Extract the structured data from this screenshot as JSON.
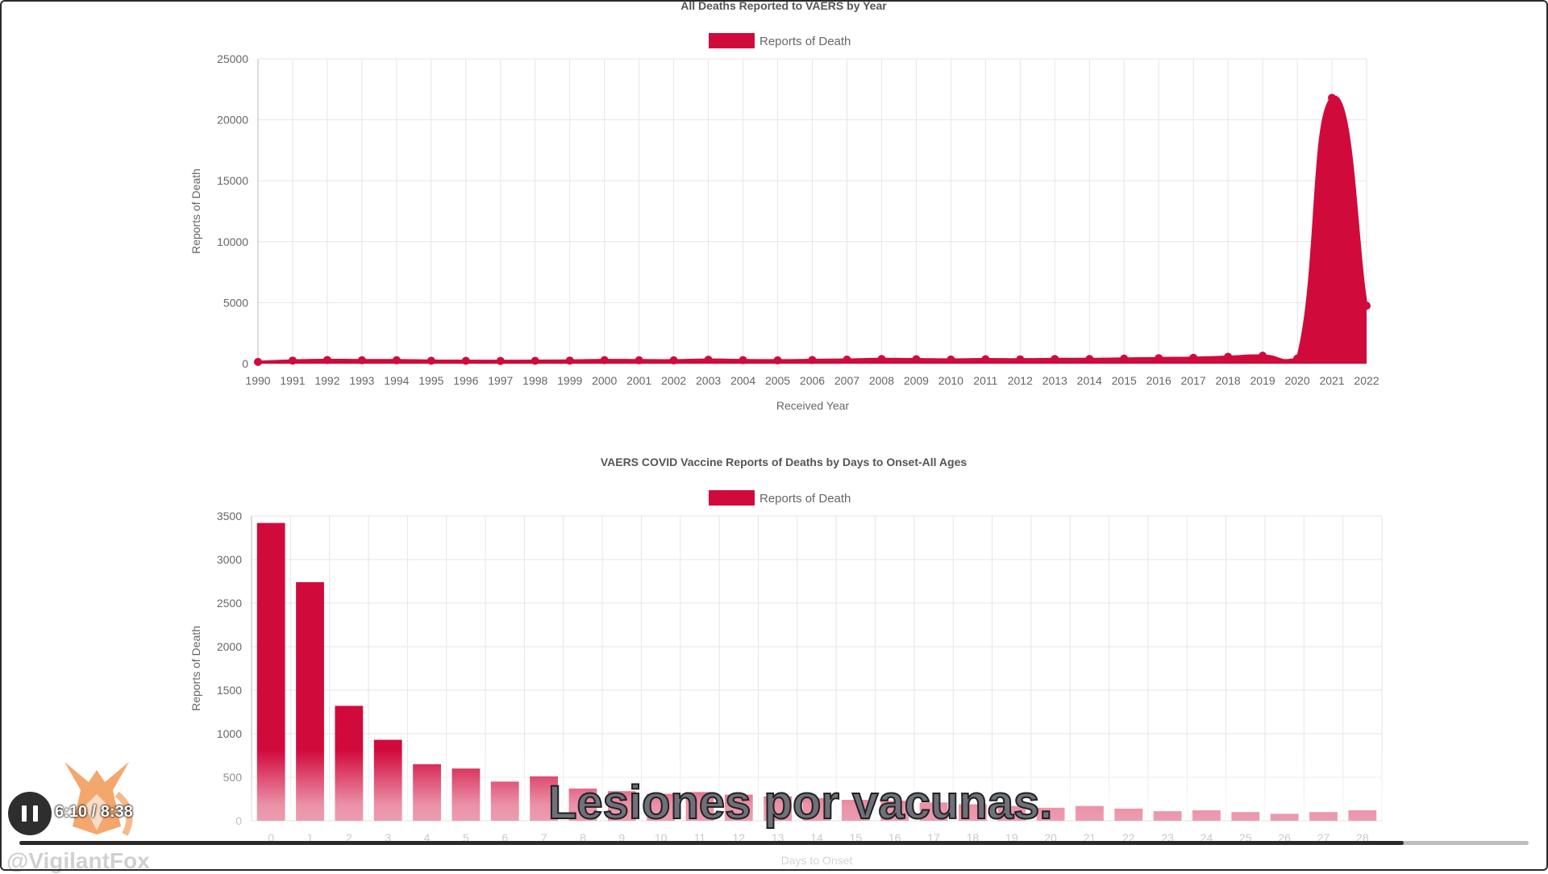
{
  "colors": {
    "accent": "#d10a3c",
    "grid": "#e6e6e6",
    "text": "#666666"
  },
  "chart_data": [
    {
      "type": "area",
      "title": "All Deaths Reported to VAERS by Year",
      "legend": "Reports of Death",
      "legend_position": "top-center",
      "xlabel": "Received Year",
      "ylabel": "Reports of Death",
      "ylim": [
        0,
        25000
      ],
      "yticks": [
        "0",
        "5000",
        "10000",
        "15000",
        "20000",
        "25000"
      ],
      "categories": [
        "1990",
        "1991",
        "1992",
        "1993",
        "1994",
        "1995",
        "1996",
        "1997",
        "1998",
        "1999",
        "2000",
        "2001",
        "2002",
        "2003",
        "2004",
        "2005",
        "2006",
        "2007",
        "2008",
        "2009",
        "2010",
        "2011",
        "2012",
        "2013",
        "2014",
        "2015",
        "2016",
        "2017",
        "2018",
        "2019",
        "2020",
        "2021",
        "2022"
      ],
      "values": [
        140,
        250,
        300,
        280,
        280,
        240,
        230,
        220,
        230,
        250,
        290,
        280,
        270,
        320,
        290,
        270,
        300,
        330,
        380,
        360,
        340,
        360,
        350,
        380,
        380,
        410,
        450,
        480,
        560,
        650,
        420,
        21800,
        4750
      ],
      "grid": true
    },
    {
      "type": "bar",
      "title": "VAERS COVID Vaccine Reports of Deaths by Days to Onset-All Ages",
      "legend": "Reports of Death",
      "legend_position": "top-center",
      "xlabel": "Days to Onset",
      "ylabel": "Reports of Death",
      "ylim": [
        0,
        3500
      ],
      "yticks": [
        "0",
        "500",
        "1000",
        "1500",
        "2000",
        "2500",
        "3000",
        "3500"
      ],
      "categories": [
        "0",
        "1",
        "2",
        "3",
        "4",
        "5",
        "6",
        "7",
        "8",
        "9",
        "10",
        "11",
        "12",
        "13",
        "14",
        "15",
        "16",
        "17",
        "18",
        "19",
        "20",
        "21",
        "22",
        "23",
        "24",
        "25",
        "26",
        "27",
        "28"
      ],
      "values": [
        3420,
        2740,
        1320,
        930,
        650,
        600,
        450,
        510,
        370,
        340,
        310,
        330,
        300,
        280,
        260,
        240,
        230,
        210,
        190,
        170,
        150,
        170,
        140,
        110,
        120,
        100,
        80,
        100,
        120
      ],
      "grid": true
    }
  ],
  "subtitle": "Lesiones por vacunas.",
  "player": {
    "time": "6:10 / 8:38",
    "progress": 0.917
  },
  "watermark": "@VigilantFox"
}
